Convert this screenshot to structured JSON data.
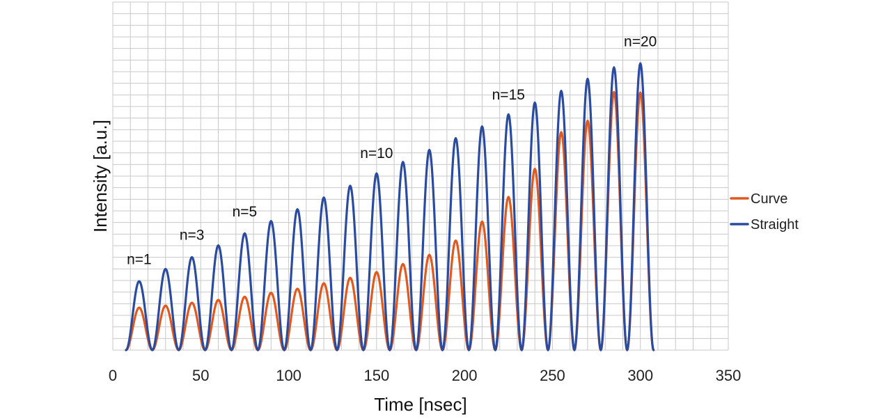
{
  "chart_data": {
    "type": "line",
    "xlabel": "Time [nsec]",
    "ylabel": "Intensity [a.u.]",
    "xlim": [
      0,
      350
    ],
    "x_ticks": [
      0,
      50,
      100,
      150,
      200,
      250,
      300,
      350
    ],
    "ylim": [
      0,
      1
    ],
    "y_tick_labels_shown": false,
    "grid": true,
    "legend_position": "right",
    "pulse_period_nsec": 15,
    "pulse_half_width_nsec": 7.5,
    "pulse_peak_times": [
      15,
      30,
      45,
      60,
      75,
      90,
      105,
      120,
      135,
      150,
      165,
      180,
      195,
      210,
      225,
      240,
      255,
      270,
      285,
      300
    ],
    "series": [
      {
        "name": "Curve",
        "color": "#E0591F",
        "peak_values": [
          0.148,
          0.155,
          0.165,
          0.175,
          0.186,
          0.2,
          0.214,
          0.233,
          0.252,
          0.272,
          0.3,
          0.332,
          0.382,
          0.448,
          0.534,
          0.632,
          0.76,
          0.8,
          0.9,
          0.898
        ]
      },
      {
        "name": "Straight",
        "color": "#2B4C9E",
        "peak_values": [
          0.24,
          0.283,
          0.324,
          0.365,
          0.407,
          0.45,
          0.491,
          0.532,
          0.573,
          0.616,
          0.656,
          0.698,
          0.739,
          0.78,
          0.822,
          0.863,
          0.904,
          0.946,
          0.986,
          1.0
        ]
      }
    ],
    "annotations": [
      {
        "text": "n=1",
        "x": 15,
        "y": 0.3
      },
      {
        "text": "n=3",
        "x": 45,
        "y": 0.385
      },
      {
        "text": "n=5",
        "x": 75,
        "y": 0.466
      },
      {
        "text": "n=10",
        "x": 150,
        "y": 0.67
      },
      {
        "text": "n=15",
        "x": 225,
        "y": 0.874
      },
      {
        "text": "n=20",
        "x": 300,
        "y": 1.06
      }
    ]
  }
}
